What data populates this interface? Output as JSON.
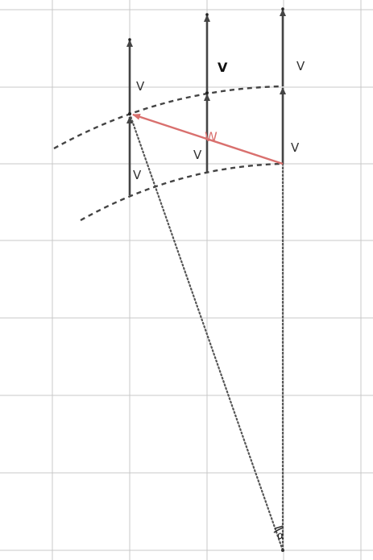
{
  "diagram": {
    "labels": {
      "v_left_upper": "V",
      "v_left_lower": "V",
      "v_mid_upper": "V",
      "v_mid_lower": "V",
      "v_right_upper": "V",
      "v_right_lower": "V",
      "w": "W",
      "alpha": "α"
    },
    "colors": {
      "grid": "#c8c8c8",
      "vector": "#444444",
      "dashed_arc": "#444444",
      "dotted_line": "#555555",
      "w_vector": "#d9706e",
      "background": "#ffffff"
    }
  }
}
